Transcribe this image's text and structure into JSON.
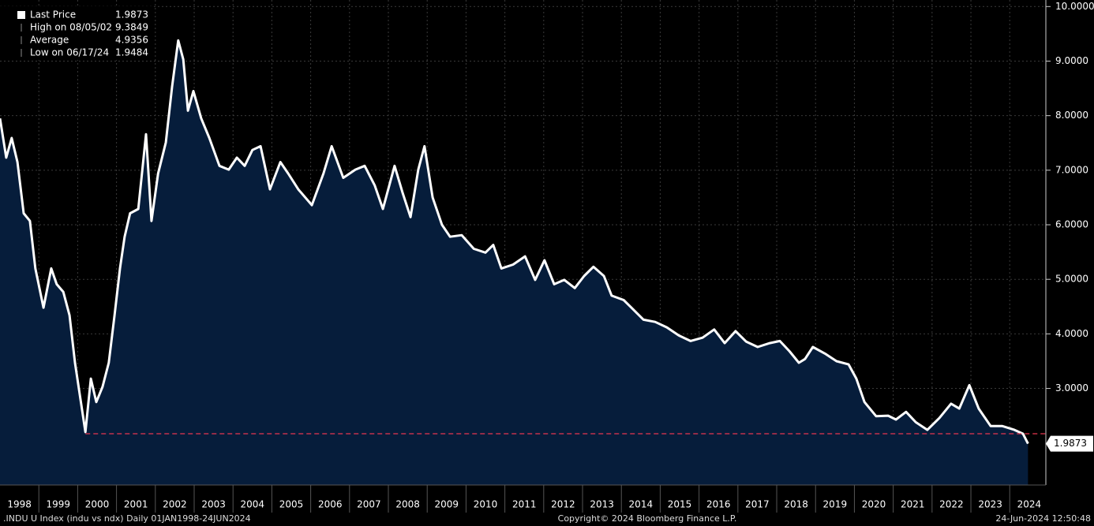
{
  "chart_data": {
    "type": "area",
    "series": [
      {
        "name": "Last Price",
        "color": "#ffffff",
        "fill": "#061d3b",
        "x": [
          1998.0,
          1998.16,
          1998.3,
          1998.45,
          1998.61,
          1998.77,
          1998.91,
          1999.12,
          1999.32,
          1999.46,
          1999.63,
          1999.79,
          1999.93,
          2000.2,
          2000.34,
          2000.48,
          2000.64,
          2000.8,
          2000.95,
          2001.09,
          2001.21,
          2001.35,
          2001.56,
          2001.76,
          2001.9,
          2002.07,
          2002.27,
          2002.43,
          2002.59,
          2002.72,
          2002.84,
          2002.98,
          2003.18,
          2003.39,
          2003.65,
          2003.89,
          2004.1,
          2004.3,
          2004.5,
          2004.71,
          2004.95,
          2005.22,
          2005.42,
          2005.68,
          2006.03,
          2006.33,
          2006.54,
          2006.84,
          2007.15,
          2007.39,
          2007.65,
          2007.86,
          2008.16,
          2008.37,
          2008.57,
          2008.77,
          2008.93,
          2009.14,
          2009.38,
          2009.59,
          2009.89,
          2010.2,
          2010.5,
          2010.7,
          2010.91,
          2011.21,
          2011.52,
          2011.78,
          2012.02,
          2012.27,
          2012.53,
          2012.8,
          2013.04,
          2013.28,
          2013.55,
          2013.75,
          2014.06,
          2014.26,
          2014.57,
          2014.87,
          2015.17,
          2015.48,
          2015.78,
          2016.09,
          2016.39,
          2016.66,
          2016.94,
          2017.21,
          2017.51,
          2017.82,
          2018.08,
          2018.33,
          2018.57,
          2018.73,
          2018.93,
          2019.24,
          2019.54,
          2019.85,
          2020.05,
          2020.26,
          2020.56,
          2020.87,
          2021.07,
          2021.33,
          2021.58,
          2021.88,
          2022.19,
          2022.49,
          2022.7,
          2022.96,
          2023.2,
          2023.51,
          2023.81,
          2024.12,
          2024.34,
          2024.47
        ],
        "values": [
          7.95,
          7.23,
          7.59,
          7.15,
          6.21,
          6.07,
          5.2,
          4.48,
          5.2,
          4.91,
          4.77,
          4.34,
          3.47,
          2.2,
          3.18,
          2.75,
          3.03,
          3.47,
          4.34,
          5.2,
          5.78,
          6.21,
          6.29,
          7.66,
          6.07,
          6.94,
          7.51,
          8.53,
          9.38,
          9.03,
          8.09,
          8.45,
          7.95,
          7.59,
          7.08,
          7.01,
          7.23,
          7.08,
          7.37,
          7.44,
          6.65,
          7.15,
          6.94,
          6.65,
          6.36,
          6.94,
          7.44,
          6.86,
          7.01,
          7.08,
          6.72,
          6.29,
          7.08,
          6.58,
          6.14,
          7.01,
          7.44,
          6.5,
          6.0,
          5.78,
          5.81,
          5.56,
          5.49,
          5.63,
          5.2,
          5.27,
          5.42,
          4.99,
          5.35,
          4.91,
          4.99,
          4.84,
          5.06,
          5.23,
          5.06,
          4.7,
          4.62,
          4.48,
          4.26,
          4.22,
          4.12,
          3.97,
          3.87,
          3.93,
          4.08,
          3.83,
          4.05,
          3.86,
          3.76,
          3.83,
          3.87,
          3.68,
          3.47,
          3.54,
          3.76,
          3.64,
          3.5,
          3.44,
          3.18,
          2.75,
          2.49,
          2.5,
          2.43,
          2.57,
          2.38,
          2.24,
          2.46,
          2.72,
          2.63,
          3.06,
          2.63,
          2.31,
          2.31,
          2.24,
          2.17,
          1.9873
        ]
      }
    ],
    "xlim": [
      1998,
      2024.93
    ],
    "xticks": [
      {
        "value": 1998.5,
        "label": "1998"
      },
      {
        "value": 1999.5,
        "label": "1999"
      },
      {
        "value": 2000.5,
        "label": "2000"
      },
      {
        "value": 2001.5,
        "label": "2001"
      },
      {
        "value": 2002.5,
        "label": "2002"
      },
      {
        "value": 2003.5,
        "label": "2003"
      },
      {
        "value": 2004.5,
        "label": "2004"
      },
      {
        "value": 2005.5,
        "label": "2005"
      },
      {
        "value": 2006.5,
        "label": "2006"
      },
      {
        "value": 2007.5,
        "label": "2007"
      },
      {
        "value": 2008.5,
        "label": "2008"
      },
      {
        "value": 2009.5,
        "label": "2009"
      },
      {
        "value": 2010.5,
        "label": "2010"
      },
      {
        "value": 2011.5,
        "label": "2011"
      },
      {
        "value": 2012.5,
        "label": "2012"
      },
      {
        "value": 2013.5,
        "label": "2013"
      },
      {
        "value": 2014.5,
        "label": "2014"
      },
      {
        "value": 2015.5,
        "label": "2015"
      },
      {
        "value": 2016.5,
        "label": "2016"
      },
      {
        "value": 2017.5,
        "label": "2017"
      },
      {
        "value": 2018.5,
        "label": "2018"
      },
      {
        "value": 2019.5,
        "label": "2019"
      },
      {
        "value": 2020.5,
        "label": "2020"
      },
      {
        "value": 2021.5,
        "label": "2021"
      },
      {
        "value": 2022.5,
        "label": "2022"
      },
      {
        "value": 2023.5,
        "label": "2023"
      },
      {
        "value": 2024.5,
        "label": "2024"
      }
    ],
    "xgrid": [
      1999,
      2000,
      2001,
      2002,
      2003,
      2004,
      2005,
      2006,
      2007,
      2008,
      2009,
      2010,
      2011,
      2012,
      2013,
      2014,
      2015,
      2016,
      2017,
      2018,
      2019,
      2020,
      2021,
      2022,
      2023,
      2024
    ],
    "ylim": [
      1.23,
      10.12
    ],
    "yticks": [
      {
        "value": 10,
        "label": "10.0000"
      },
      {
        "value": 9,
        "label": "9.0000"
      },
      {
        "value": 8,
        "label": "8.0000"
      },
      {
        "value": 7,
        "label": "7.0000"
      },
      {
        "value": 6,
        "label": "6.0000"
      },
      {
        "value": 5,
        "label": "5.0000"
      },
      {
        "value": 4,
        "label": "4.0000"
      },
      {
        "value": 3,
        "label": "3.0000"
      }
    ],
    "grid": true,
    "hline": {
      "value": 2.17,
      "color": "#e8364f"
    },
    "last_price_label": {
      "value": 1.9873,
      "label": "1.9873"
    },
    "legend": [
      {
        "label": "Last Price",
        "value": 1.9873
      },
      {
        "label": "High on 08/05/02",
        "value": 9.3849
      },
      {
        "label": "Average",
        "value": 4.9356
      },
      {
        "label": "Low on 06/17/24",
        "value": 1.9484
      }
    ],
    "legend_position": "upper left",
    "footer": {
      "left": ".INDU U Index (indu vs ndx)  Daily 01JAN1998-24JUN2024",
      "center": "Copyright© 2024 Bloomberg Finance L.P.",
      "right": "24-Jun-2024 12:50:48"
    }
  }
}
